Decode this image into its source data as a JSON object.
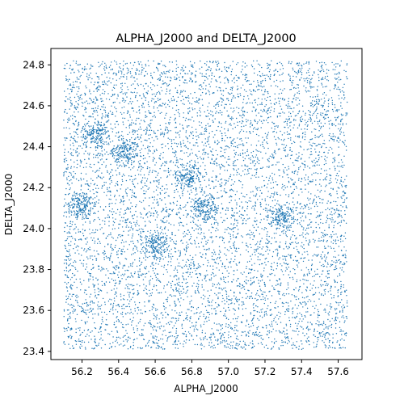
{
  "chart_data": {
    "type": "scatter",
    "title": "ALPHA_J2000 and DELTA_J2000",
    "xlabel": "ALPHA_J2000",
    "ylabel": "DELTA_J2000",
    "xlim": [
      56.03,
      57.73
    ],
    "ylim": [
      23.36,
      24.88
    ],
    "xticks": [
      56.2,
      56.4,
      56.6,
      56.8,
      57.0,
      57.2,
      57.4,
      57.6
    ],
    "xtick_labels": [
      "56.2",
      "56.4",
      "56.6",
      "56.8",
      "57.0",
      "57.2",
      "57.4",
      "57.6"
    ],
    "yticks": [
      23.4,
      23.6,
      23.8,
      24.0,
      24.2,
      24.4,
      24.6,
      24.8
    ],
    "ytick_labels": [
      "23.4",
      "23.6",
      "23.8",
      "24.0",
      "24.2",
      "24.4",
      "24.6",
      "24.8"
    ],
    "grid": false,
    "legend": "none",
    "marker_color": "#1f77b4",
    "data_extent": {
      "x": [
        56.1,
        57.65
      ],
      "y": [
        23.41,
        24.82
      ]
    },
    "clusters": [
      {
        "x": 56.27,
        "y": 24.46
      },
      {
        "x": 56.44,
        "y": 24.37
      },
      {
        "x": 56.2,
        "y": 24.11
      },
      {
        "x": 56.6,
        "y": 23.92
      },
      {
        "x": 56.87,
        "y": 24.1
      },
      {
        "x": 57.29,
        "y": 24.05
      },
      {
        "x": 56.78,
        "y": 24.25
      }
    ],
    "points": [
      [
        56.15,
        24.78
      ],
      [
        56.42,
        24.71
      ],
      [
        56.88,
        24.8
      ],
      [
        57.33,
        24.75
      ],
      [
        57.6,
        24.69
      ],
      [
        56.21,
        24.55
      ],
      [
        56.63,
        24.6
      ],
      [
        57.05,
        24.52
      ],
      [
        57.48,
        24.58
      ],
      [
        56.33,
        24.3
      ],
      [
        56.74,
        24.41
      ],
      [
        57.14,
        24.33
      ],
      [
        57.55,
        24.22
      ],
      [
        56.12,
        23.95
      ],
      [
        56.49,
        24.02
      ],
      [
        57.02,
        23.88
      ],
      [
        57.41,
        23.84
      ],
      [
        56.3,
        23.7
      ],
      [
        56.71,
        23.62
      ],
      [
        57.2,
        23.66
      ],
      [
        57.58,
        23.55
      ],
      [
        56.18,
        23.45
      ],
      [
        56.55,
        23.43
      ],
      [
        56.96,
        23.47
      ],
      [
        57.37,
        23.42
      ]
    ]
  }
}
